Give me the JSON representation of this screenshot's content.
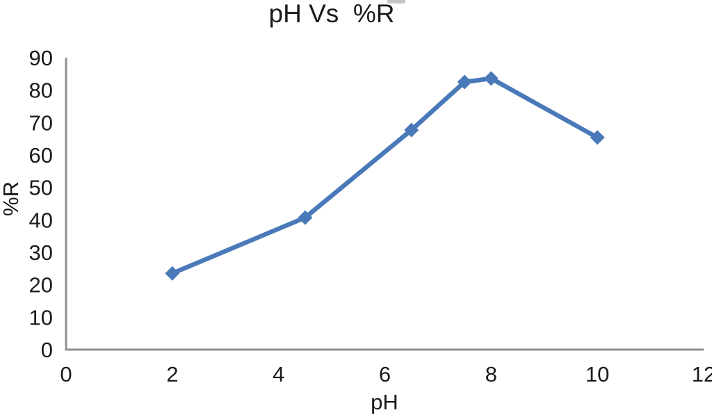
{
  "chart_data": {
    "type": "line",
    "title": "pH Vs  %R",
    "xlabel": "pH",
    "ylabel": "%R",
    "x": [
      2,
      4.5,
      6.5,
      7.5,
      8,
      10
    ],
    "y": [
      23.5,
      40.7,
      67.7,
      82.5,
      83.6,
      65.4
    ],
    "xlim": [
      0,
      12
    ],
    "ylim": [
      0,
      90
    ],
    "xticks": [
      0,
      2,
      4,
      6,
      8,
      10,
      12
    ],
    "yticks": [
      0,
      10,
      20,
      30,
      40,
      50,
      60,
      70,
      80,
      90
    ],
    "grid": false,
    "legend": false,
    "marker": "diamond",
    "line_color": "#4979B8",
    "axis_color": "#8F8F8F",
    "text_color": "#1A1A1A"
  }
}
